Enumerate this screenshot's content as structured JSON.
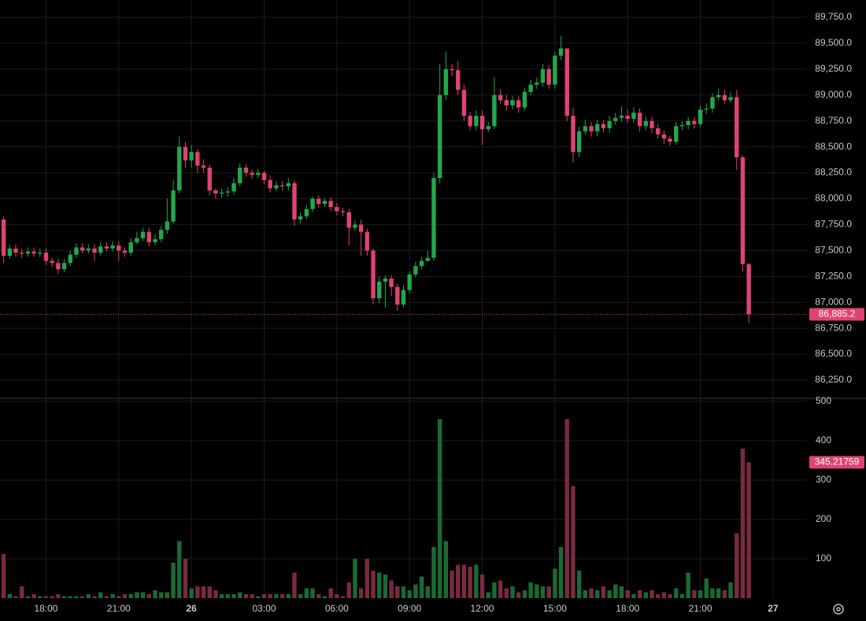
{
  "chart_data": {
    "type": "candlestick",
    "x": [
      -7.75,
      -7.5,
      -7.25,
      -7,
      -6.75,
      -6.5,
      -6.25,
      -6,
      -5.75,
      -5.5,
      -5.25,
      -5,
      -4.75,
      -4.5,
      -4.25,
      -4,
      -3.75,
      -3.5,
      -3.25,
      -3,
      -2.75,
      -2.5,
      -2.25,
      -2,
      -1.75,
      -1.5,
      -1.25,
      -1,
      -0.75,
      -0.5,
      -0.25,
      0,
      0.25,
      0.5,
      0.75,
      1,
      1.25,
      1.5,
      1.75,
      2,
      2.25,
      2.5,
      2.75,
      3,
      3.25,
      3.5,
      3.75,
      4,
      4.25,
      4.5,
      4.75,
      5,
      5.25,
      5.5,
      5.75,
      6,
      6.25,
      6.5,
      6.75,
      7,
      7.25,
      7.5,
      7.75,
      8,
      8.25,
      8.5,
      8.75,
      9,
      9.25,
      9.5,
      9.75,
      10,
      10.25,
      10.5,
      10.75,
      11,
      11.25,
      11.5,
      11.75,
      12,
      12.25,
      12.5,
      12.75,
      13,
      13.25,
      13.5,
      13.75,
      14,
      14.25,
      14.5,
      14.75,
      15,
      15.25,
      15.5,
      15.75,
      16,
      16.25,
      16.5,
      16.75,
      17,
      17.25,
      17.5,
      17.75,
      18,
      18.25,
      18.5,
      18.75,
      19,
      19.25,
      19.5,
      19.75,
      20,
      20.25,
      20.5,
      20.75,
      21,
      21.25,
      21.5,
      21.75,
      22,
      22.25,
      22.5,
      22.75,
      23
    ],
    "xlim": [
      -7.9,
      25.4
    ],
    "xticks": [
      {
        "value": -6,
        "label": "18:00"
      },
      {
        "value": -3,
        "label": "21:00"
      },
      {
        "value": 0,
        "label": "26"
      },
      {
        "value": 3,
        "label": "03:00"
      },
      {
        "value": 6,
        "label": "06:00"
      },
      {
        "value": 9,
        "label": "09:00"
      },
      {
        "value": 12,
        "label": "12:00"
      },
      {
        "value": 15,
        "label": "15:00"
      },
      {
        "value": 18,
        "label": "18:00"
      },
      {
        "value": 21,
        "label": "21:00"
      },
      {
        "value": 24,
        "label": "27"
      }
    ],
    "open": [
      87800,
      87450,
      87520,
      87480,
      87470,
      87490,
      87470,
      87480,
      87400,
      87380,
      87320,
      87380,
      87460,
      87530,
      87500,
      87520,
      87480,
      87540,
      87520,
      87550,
      87500,
      87480,
      87580,
      87620,
      87680,
      87580,
      87610,
      87700,
      87780,
      88080,
      88500,
      88370,
      88450,
      88320,
      88300,
      88080,
      88050,
      88060,
      88070,
      88150,
      88300,
      88250,
      88230,
      88250,
      88180,
      88100,
      88130,
      88120,
      88150,
      87800,
      87830,
      87900,
      88000,
      87950,
      87980,
      87920,
      87880,
      87870,
      87720,
      87750,
      87680,
      87500,
      87040,
      87200,
      87230,
      87150,
      86980,
      87120,
      87270,
      87350,
      87400,
      87430,
      88200,
      89000,
      89250,
      89240,
      89050,
      88800,
      88700,
      88800,
      88670,
      88700,
      89000,
      88950,
      88900,
      88950,
      88880,
      89030,
      89100,
      89120,
      89250,
      89100,
      89380,
      89450,
      88800,
      88450,
      88650,
      88700,
      88650,
      88720,
      88680,
      88750,
      88780,
      88800,
      88770,
      88830,
      88700,
      88750,
      88680,
      88620,
      88580,
      88550,
      88700,
      88710,
      88750,
      88720,
      88860,
      88870,
      88980,
      89000,
      88950,
      88980,
      88400,
      87370
    ],
    "high": [
      87830,
      87560,
      87560,
      87520,
      87530,
      87530,
      87520,
      87520,
      87430,
      87420,
      87420,
      87500,
      87570,
      87570,
      87560,
      87560,
      87580,
      87580,
      87590,
      87590,
      87530,
      87620,
      87680,
      87720,
      87720,
      87660,
      87740,
      88000,
      88180,
      88600,
      88550,
      88520,
      88480,
      88380,
      88330,
      88100,
      88100,
      88110,
      88200,
      88340,
      88330,
      88280,
      88290,
      88270,
      88220,
      88170,
      88170,
      88200,
      88180,
      87870,
      87940,
      88020,
      88030,
      88010,
      88010,
      87960,
      87910,
      87900,
      87790,
      87800,
      87710,
      87520,
      87250,
      87260,
      87260,
      87180,
      87160,
      87300,
      87390,
      87440,
      87500,
      88250,
      89300,
      89420,
      89300,
      89330,
      89100,
      88840,
      88850,
      88850,
      88740,
      89170,
      89060,
      89000,
      88990,
      88990,
      89070,
      89150,
      89170,
      89300,
      89290,
      89420,
      89570,
      89450,
      88880,
      88700,
      88760,
      88740,
      88760,
      88760,
      88800,
      88830,
      88890,
      88860,
      88880,
      88870,
      88790,
      88790,
      88720,
      88660,
      88610,
      88740,
      88750,
      88790,
      88790,
      88900,
      88920,
      89020,
      89060,
      89050,
      89030,
      89050,
      88420,
      87380
    ],
    "low": [
      87380,
      87420,
      87440,
      87430,
      87440,
      87440,
      87440,
      87360,
      87340,
      87270,
      87290,
      87350,
      87430,
      87470,
      87470,
      87400,
      87450,
      87490,
      87490,
      87400,
      87440,
      87450,
      87560,
      87590,
      87540,
      87550,
      87580,
      87660,
      87760,
      88050,
      88300,
      88300,
      88250,
      88250,
      88030,
      88000,
      88010,
      88020,
      88040,
      88120,
      88210,
      88190,
      88200,
      88140,
      88060,
      88070,
      88080,
      88080,
      87740,
      87760,
      87800,
      87870,
      87910,
      87920,
      87880,
      87840,
      87830,
      87550,
      87690,
      87450,
      87450,
      86980,
      86990,
      86950,
      87060,
      86920,
      86950,
      87090,
      87240,
      87320,
      87390,
      87400,
      88150,
      88950,
      89180,
      89000,
      88750,
      88660,
      88660,
      88520,
      88640,
      88670,
      88910,
      88850,
      88860,
      88830,
      88850,
      89000,
      89060,
      89080,
      89060,
      89060,
      89340,
      88750,
      88350,
      88400,
      88620,
      88600,
      88600,
      88640,
      88640,
      88710,
      88740,
      88730,
      88730,
      88650,
      88660,
      88630,
      88580,
      88530,
      88510,
      88520,
      88660,
      88670,
      88680,
      88690,
      88820,
      88830,
      88950,
      88910,
      88920,
      88280,
      87300,
      86800
    ],
    "close": [
      87450,
      87520,
      87480,
      87470,
      87490,
      87470,
      87480,
      87400,
      87380,
      87320,
      87380,
      87460,
      87530,
      87500,
      87520,
      87480,
      87540,
      87520,
      87550,
      87500,
      87480,
      87580,
      87620,
      87680,
      87580,
      87610,
      87700,
      87780,
      88080,
      88500,
      88370,
      88450,
      88320,
      88300,
      88080,
      88050,
      88060,
      88070,
      88150,
      88300,
      88250,
      88230,
      88250,
      88180,
      88100,
      88130,
      88120,
      88150,
      87800,
      87830,
      87900,
      88000,
      87950,
      87980,
      87920,
      87880,
      87870,
      87720,
      87750,
      87680,
      87500,
      87040,
      87200,
      87230,
      87150,
      86980,
      87120,
      87270,
      87350,
      87400,
      87430,
      88200,
      89000,
      89250,
      89240,
      89050,
      88800,
      88700,
      88800,
      88670,
      88700,
      89000,
      88950,
      88900,
      88950,
      88880,
      89030,
      89100,
      89120,
      89250,
      89100,
      89380,
      89450,
      88800,
      88450,
      88650,
      88700,
      88650,
      88720,
      88680,
      88750,
      88780,
      88800,
      88770,
      88830,
      88700,
      88750,
      88680,
      88620,
      88580,
      88550,
      88700,
      88710,
      88750,
      88720,
      88860,
      88870,
      88980,
      89000,
      88950,
      88980,
      88400,
      87370,
      86885.2
    ],
    "close_label": "86,885.2",
    "ylim": [
      86083,
      89917
    ],
    "yticks": [
      {
        "value": 86250,
        "label": "86,250.0"
      },
      {
        "value": 86500,
        "label": "86,500.0"
      },
      {
        "value": 86750,
        "label": "86,750.0"
      },
      {
        "value": 87000,
        "label": "87,000.0"
      },
      {
        "value": 87250,
        "label": "87,250.0"
      },
      {
        "value": 87500,
        "label": "87,500.0"
      },
      {
        "value": 87750,
        "label": "87,750.0"
      },
      {
        "value": 88000,
        "label": "88,000.0"
      },
      {
        "value": 88250,
        "label": "88,250.0"
      },
      {
        "value": 88500,
        "label": "88,500.0"
      },
      {
        "value": 88750,
        "label": "88,750.0"
      },
      {
        "value": 89000,
        "label": "89,000.0"
      },
      {
        "value": 89250,
        "label": "89,250.0"
      },
      {
        "value": 89500,
        "label": "89,500.0"
      },
      {
        "value": 89750,
        "label": "89,750.0"
      }
    ],
    "volume": [
      112,
      10,
      5,
      30,
      5,
      10,
      5,
      5,
      5,
      10,
      5,
      5,
      5,
      5,
      10,
      5,
      15,
      5,
      10,
      5,
      10,
      10,
      15,
      15,
      10,
      20,
      15,
      15,
      90,
      145,
      100,
      25,
      30,
      30,
      30,
      20,
      10,
      10,
      10,
      15,
      10,
      10,
      5,
      10,
      10,
      10,
      10,
      10,
      65,
      10,
      25,
      25,
      10,
      5,
      25,
      10,
      5,
      40,
      100,
      25,
      100,
      70,
      65,
      60,
      45,
      30,
      30,
      20,
      35,
      55,
      30,
      130,
      455,
      145,
      70,
      85,
      85,
      80,
      85,
      60,
      15,
      40,
      45,
      25,
      30,
      15,
      20,
      40,
      35,
      30,
      30,
      75,
      130,
      455,
      285,
      70,
      20,
      25,
      20,
      30,
      20,
      35,
      30,
      20,
      10,
      20,
      15,
      20,
      10,
      15,
      10,
      25,
      10,
      65,
      20,
      20,
      50,
      25,
      25,
      20,
      40,
      165,
      380,
      345.21759
    ],
    "volume_label": "345.21759",
    "volume_ylim": [
      0,
      506
    ],
    "volume_yticks": [
      100,
      200,
      300,
      400,
      500
    ],
    "grid": true,
    "colors": {
      "up": "#22a84a",
      "down": "#df4470",
      "volume_up": "#1b6a33",
      "volume_down": "#7a2a40"
    }
  }
}
